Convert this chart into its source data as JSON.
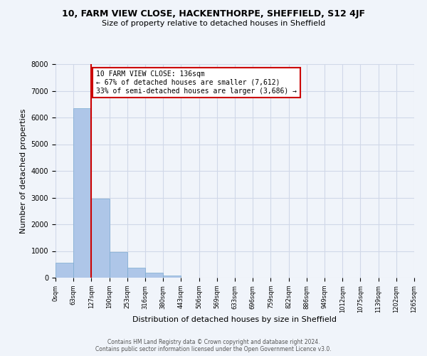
{
  "title": "10, FARM VIEW CLOSE, HACKENTHORPE, SHEFFIELD, S12 4JF",
  "subtitle": "Size of property relative to detached houses in Sheffield",
  "xlabel": "Distribution of detached houses by size in Sheffield",
  "ylabel": "Number of detached properties",
  "bin_labels": [
    "0sqm",
    "63sqm",
    "127sqm",
    "190sqm",
    "253sqm",
    "316sqm",
    "380sqm",
    "443sqm",
    "506sqm",
    "569sqm",
    "633sqm",
    "696sqm",
    "759sqm",
    "822sqm",
    "886sqm",
    "949sqm",
    "1012sqm",
    "1075sqm",
    "1139sqm",
    "1202sqm",
    "1265sqm"
  ],
  "bar_heights": [
    550,
    6350,
    2950,
    950,
    380,
    175,
    90,
    0,
    0,
    0,
    0,
    0,
    0,
    0,
    0,
    0,
    0,
    0,
    0,
    0
  ],
  "bar_color": "#aec6e8",
  "bar_edge_color": "#7aaad0",
  "property_line_x": 2,
  "property_sqm": 136,
  "annotation_title": "10 FARM VIEW CLOSE: 136sqm",
  "annotation_line1": "← 67% of detached houses are smaller (7,612)",
  "annotation_line2": "33% of semi-detached houses are larger (3,686) →",
  "annotation_box_color": "#ffffff",
  "annotation_box_edge_color": "#cc0000",
  "vline_color": "#cc0000",
  "ylim": [
    0,
    8000
  ],
  "yticks": [
    0,
    1000,
    2000,
    3000,
    4000,
    5000,
    6000,
    7000,
    8000
  ],
  "grid_color": "#d0d8e8",
  "bg_color": "#f0f4fa",
  "footer_line1": "Contains HM Land Registry data © Crown copyright and database right 2024.",
  "footer_line2": "Contains public sector information licensed under the Open Government Licence v3.0."
}
